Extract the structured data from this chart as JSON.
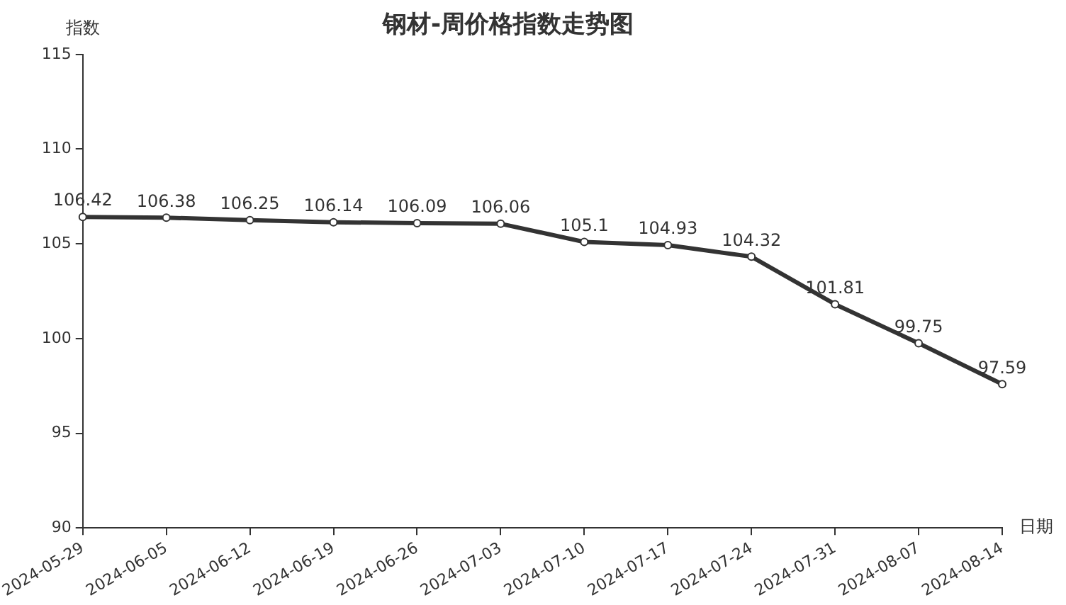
{
  "chart_data": {
    "type": "line",
    "title": "钢材-周价格指数走势图",
    "xlabel": "日期",
    "ylabel": "指数",
    "categories": [
      "2024-05-29",
      "2024-06-05",
      "2024-06-12",
      "2024-06-19",
      "2024-06-26",
      "2024-07-03",
      "2024-07-10",
      "2024-07-17",
      "2024-07-24",
      "2024-07-31",
      "2024-08-07",
      "2024-08-14"
    ],
    "series": [
      {
        "color": "#333333",
        "values": [
          106.42,
          106.38,
          106.25,
          106.14,
          106.09,
          106.06,
          105.1,
          104.93,
          104.32,
          101.81,
          99.75,
          97.59
        ]
      }
    ],
    "ylim": [
      90,
      115
    ],
    "yticks": [
      90,
      95,
      100,
      105,
      110,
      115
    ],
    "grid": false,
    "legend": false,
    "marker": "circle",
    "line_style": "solid",
    "data_labels": true
  }
}
